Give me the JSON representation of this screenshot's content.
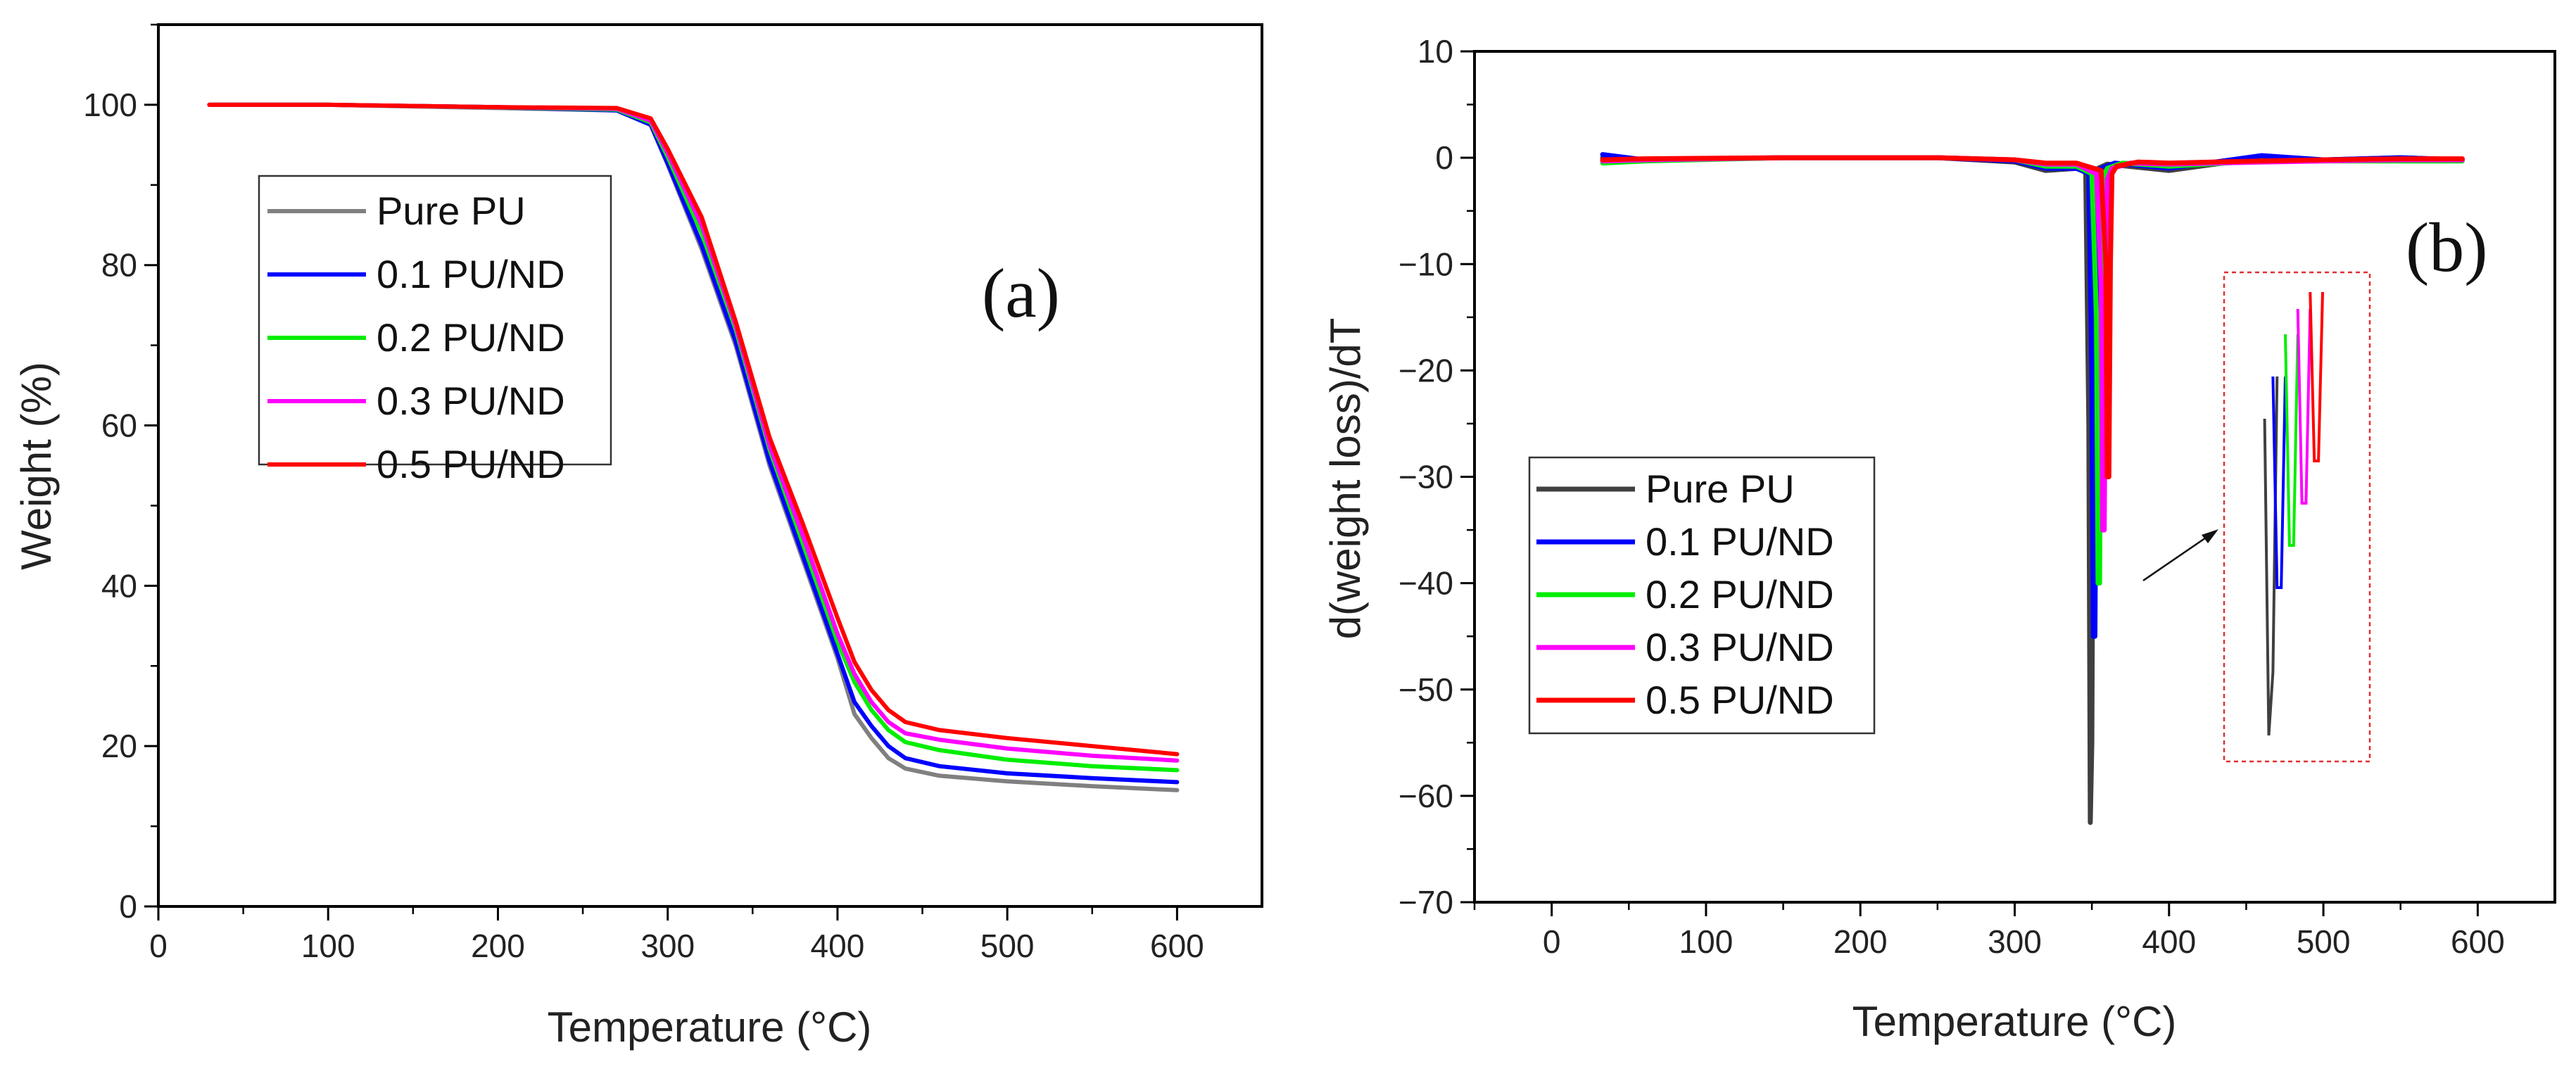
{
  "chart_data": [
    {
      "panel_id": "a",
      "type": "line",
      "panel_label": "(a)",
      "xlabel": "Temperature (°C)",
      "ylabel": "Weight (%)",
      "xlim": [
        0,
        650
      ],
      "ylim": [
        0,
        110
      ],
      "xticks": [
        0,
        100,
        200,
        300,
        400,
        500,
        600
      ],
      "yticks": [
        0,
        20,
        40,
        60,
        80,
        100
      ],
      "legend_location": "upper-left",
      "series": [
        {
          "name": "Pure PU",
          "color": "#808080",
          "x": [
            30,
            100,
            200,
            270,
            290,
            300,
            320,
            340,
            360,
            380,
            400,
            410,
            420,
            430,
            440,
            460,
            500,
            550,
            600
          ],
          "y": [
            100,
            100,
            99.6,
            99.3,
            97.5,
            92.5,
            82,
            70,
            55,
            43,
            31,
            24,
            21,
            18.5,
            17.2,
            16.3,
            15.6,
            15.0,
            14.5
          ]
        },
        {
          "name": "0.1 PU/ND",
          "color": "#0000ff",
          "x": [
            30,
            100,
            200,
            270,
            290,
            300,
            320,
            340,
            360,
            380,
            400,
            410,
            420,
            430,
            440,
            460,
            500,
            550,
            600
          ],
          "y": [
            100,
            100,
            99.7,
            99.3,
            97.5,
            92.7,
            82.5,
            70.5,
            55.5,
            43.5,
            31.5,
            25.5,
            22.5,
            20,
            18.5,
            17.5,
            16.6,
            16.0,
            15.5
          ]
        },
        {
          "name": "0.2 PU/ND",
          "color": "#00ee00",
          "x": [
            30,
            100,
            200,
            270,
            290,
            300,
            320,
            340,
            360,
            380,
            400,
            410,
            420,
            430,
            440,
            460,
            500,
            550,
            600
          ],
          "y": [
            100,
            100,
            99.7,
            99.4,
            97.8,
            93.5,
            84,
            72,
            57,
            45,
            33,
            28,
            24.5,
            22,
            20.5,
            19.5,
            18.3,
            17.5,
            17
          ]
        },
        {
          "name": "0.3 PU/ND",
          "color": "#ff00ff",
          "x": [
            30,
            100,
            200,
            270,
            290,
            300,
            320,
            340,
            360,
            380,
            400,
            410,
            420,
            430,
            440,
            460,
            500,
            550,
            600
          ],
          "y": [
            100,
            100,
            99.7,
            99.5,
            98,
            94,
            85,
            72.5,
            57.5,
            46,
            34,
            29,
            25.5,
            23,
            21.6,
            20.8,
            19.7,
            18.8,
            18.2
          ]
        },
        {
          "name": "0.5 PU/ND",
          "color": "#ff0000",
          "x": [
            30,
            100,
            200,
            270,
            290,
            300,
            320,
            340,
            360,
            380,
            400,
            410,
            420,
            430,
            440,
            460,
            500,
            550,
            600
          ],
          "y": [
            100,
            100,
            99.7,
            99.6,
            98.3,
            94.5,
            86,
            73,
            58.5,
            47.5,
            36,
            30.5,
            27,
            24.5,
            23,
            22,
            21,
            20,
            19
          ]
        }
      ]
    },
    {
      "panel_id": "b",
      "type": "line",
      "panel_label": "(b)",
      "xlabel": "Temperature (°C)",
      "ylabel": "d(weight loss)/dT",
      "xlim": [
        -50,
        650
      ],
      "ylim": [
        -70,
        10
      ],
      "xticks": [
        0,
        100,
        200,
        300,
        400,
        500,
        600
      ],
      "yticks": [
        10,
        0,
        -10,
        -20,
        -30,
        -40,
        -50,
        -60,
        -70
      ],
      "legend_location": "lower-left",
      "series": [
        {
          "name": "Pure PU",
          "color": "#404040",
          "x": [
            33,
            60,
            150,
            250,
            300,
            320,
            340,
            346,
            348,
            349,
            350,
            351,
            352,
            354,
            360,
            400,
            460,
            500,
            550,
            590
          ],
          "y": [
            0,
            -0.2,
            0,
            0,
            -0.4,
            -1.2,
            -1,
            -1.2,
            -25,
            -62.5,
            -55,
            -20,
            -2,
            -1,
            -0.6,
            -1.2,
            0,
            -0.2,
            0,
            -0.2
          ]
        },
        {
          "name": "0.1 PU/ND",
          "color": "#0000ff",
          "x": [
            33,
            60,
            150,
            250,
            300,
            320,
            340,
            348,
            350,
            351,
            352,
            353,
            354,
            356,
            365,
            400,
            460,
            500,
            550,
            590
          ],
          "y": [
            0.3,
            -0.2,
            0,
            0,
            -0.3,
            -1,
            -1,
            -1.5,
            -20,
            -45,
            -45,
            -20,
            -2,
            -1,
            -0.5,
            -1,
            0.2,
            -0.2,
            0,
            -0.2
          ]
        },
        {
          "name": "0.2 PU/ND",
          "color": "#00ee00",
          "x": [
            33,
            60,
            150,
            250,
            300,
            320,
            340,
            350,
            353,
            354,
            355,
            356,
            357,
            360,
            370,
            400,
            460,
            500,
            550,
            590
          ],
          "y": [
            -0.5,
            -0.3,
            0,
            0,
            -0.2,
            -0.8,
            -0.8,
            -1.5,
            -15,
            -40,
            -40,
            -15,
            -2,
            -1,
            -0.5,
            -0.8,
            -0.3,
            -0.3,
            -0.3,
            -0.3
          ]
        },
        {
          "name": "0.3 PU/ND",
          "color": "#ff00ff",
          "x": [
            33,
            60,
            150,
            250,
            300,
            320,
            340,
            353,
            356,
            357,
            358,
            359,
            360,
            363,
            375,
            400,
            460,
            500,
            550,
            590
          ],
          "y": [
            -0.3,
            -0.2,
            0,
            0,
            -0.2,
            -0.6,
            -0.6,
            -1.5,
            -12,
            -35,
            -35,
            -12,
            -2,
            -1,
            -0.5,
            -0.6,
            -0.4,
            -0.3,
            -0.2,
            -0.2
          ]
        },
        {
          "name": "0.5 PU/ND",
          "color": "#ff0000",
          "x": [
            33,
            60,
            150,
            250,
            300,
            320,
            340,
            356,
            359,
            360,
            361,
            362,
            363,
            366,
            380,
            400,
            460,
            500,
            550,
            590
          ],
          "y": [
            -0.2,
            -0.1,
            0,
            0,
            -0.2,
            -0.5,
            -0.5,
            -1.2,
            -10,
            -30,
            -30,
            -10,
            -1.5,
            -0.8,
            -0.4,
            -0.5,
            -0.3,
            -0.2,
            -0.1,
            -0.1
          ]
        }
      ]
    }
  ]
}
